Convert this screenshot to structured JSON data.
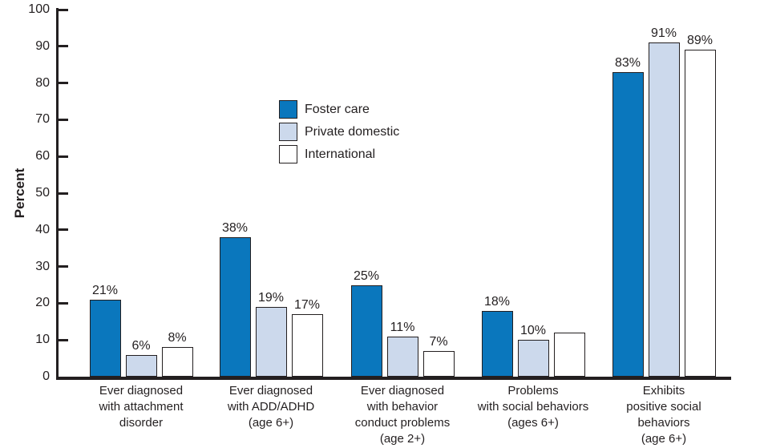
{
  "chart_data": {
    "type": "bar",
    "title": "",
    "ylabel": "Percent",
    "ylim": [
      0,
      100
    ],
    "yticks": [
      0,
      10,
      20,
      30,
      40,
      50,
      60,
      70,
      80,
      90,
      100
    ],
    "grid": false,
    "legend_position": "upper-center",
    "categories": [
      [
        "Ever diagnosed",
        "with attachment",
        "disorder"
      ],
      [
        "Ever diagnosed",
        "with ADD/ADHD",
        "(age 6+)"
      ],
      [
        "Ever diagnosed",
        "with behavior",
        "conduct problems",
        "(age 2+)"
      ],
      [
        "Problems",
        "with social behaviors",
        "(ages 6+)"
      ],
      [
        "Exhibits",
        "positive social",
        "behaviors",
        "(age 6+)"
      ]
    ],
    "series": [
      {
        "name": "Foster care",
        "color": "#0a77bd",
        "values": [
          21,
          38,
          25,
          18,
          83
        ],
        "bar_labels": [
          "21%",
          "38%",
          "25%",
          "18%",
          "83%"
        ]
      },
      {
        "name": "Private domestic",
        "color": "#ccd9ec",
        "values": [
          6,
          19,
          11,
          10,
          91
        ],
        "bar_labels": [
          "6%",
          "19%",
          "11%",
          "10%",
          "91%"
        ]
      },
      {
        "name": "International",
        "color": "#ffffff",
        "values": [
          8,
          17,
          7,
          12,
          89
        ],
        "bar_labels": [
          "8%",
          "17%",
          "7%",
          "",
          "89%"
        ]
      }
    ],
    "colors": {
      "axis": "#231f20",
      "text": "#231f20"
    }
  }
}
